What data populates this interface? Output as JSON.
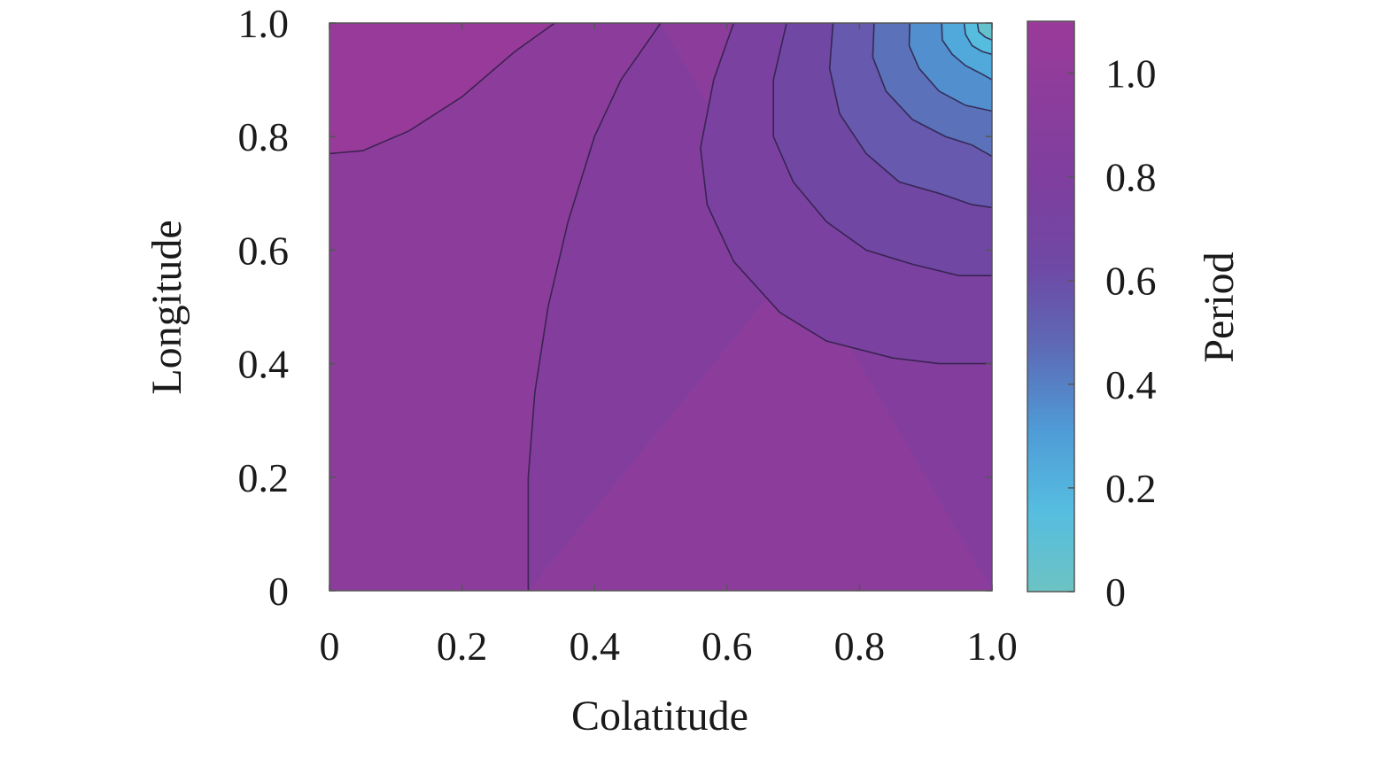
{
  "chart_data": {
    "type": "contour",
    "xlabel": "Colatitude",
    "ylabel": "Longitude",
    "colorbar_label": "Period",
    "xlim": [
      0,
      1.0
    ],
    "ylim": [
      0,
      1.0
    ],
    "x_ticks": [
      0,
      0.2,
      0.4,
      0.6,
      0.8,
      1.0
    ],
    "x_tick_labels": [
      "0",
      "0.2",
      "0.4",
      "0.6",
      "0.8",
      "1.0"
    ],
    "y_ticks": [
      0,
      0.2,
      0.4,
      0.6,
      0.8,
      1.0
    ],
    "y_tick_labels": [
      "0",
      "0.2",
      "0.4",
      "0.6",
      "0.8",
      "1.0"
    ],
    "colorbar_range": [
      0,
      1.1
    ],
    "colorbar_ticks": [
      0,
      0.2,
      0.4,
      0.6,
      0.8,
      1.0
    ],
    "colorbar_tick_labels": [
      "0",
      "0.2",
      "0.4",
      "0.6",
      "0.8",
      "1.0"
    ],
    "colormap": [
      "#6cc3c3",
      "#55bde0",
      "#4f9ad6",
      "#5d6ab6",
      "#6f48a5",
      "#7e3f9e",
      "#8b3d9c",
      "#9a3a9a"
    ],
    "contours": [
      {
        "level": 1.05,
        "points": [
          [
            0.0,
            0.77
          ],
          [
            0.05,
            0.775
          ],
          [
            0.12,
            0.81
          ],
          [
            0.2,
            0.87
          ],
          [
            0.28,
            0.95
          ],
          [
            0.34,
            1.0
          ]
        ]
      },
      {
        "level": 0.95,
        "points": [
          [
            0.3,
            0.0
          ],
          [
            0.3,
            0.2
          ],
          [
            0.31,
            0.35
          ],
          [
            0.33,
            0.5
          ],
          [
            0.36,
            0.65
          ],
          [
            0.4,
            0.8
          ],
          [
            0.44,
            0.9
          ],
          [
            0.5,
            1.0
          ]
        ]
      },
      {
        "level": 0.85,
        "points": [
          [
            0.61,
            1.0
          ],
          [
            0.58,
            0.9
          ],
          [
            0.56,
            0.78
          ],
          [
            0.57,
            0.68
          ],
          [
            0.61,
            0.58
          ],
          [
            0.68,
            0.49
          ],
          [
            0.75,
            0.44
          ],
          [
            0.85,
            0.41
          ],
          [
            0.92,
            0.4
          ],
          [
            1.0,
            0.4
          ]
        ]
      },
      {
        "level": 0.75,
        "points": [
          [
            0.69,
            1.0
          ],
          [
            0.67,
            0.9
          ],
          [
            0.67,
            0.8
          ],
          [
            0.7,
            0.72
          ],
          [
            0.75,
            0.65
          ],
          [
            0.81,
            0.6
          ],
          [
            0.88,
            0.575
          ],
          [
            0.95,
            0.555
          ],
          [
            1.0,
            0.555
          ]
        ]
      },
      {
        "level": 0.65,
        "points": [
          [
            0.76,
            1.0
          ],
          [
            0.755,
            0.92
          ],
          [
            0.77,
            0.84
          ],
          [
            0.81,
            0.77
          ],
          [
            0.86,
            0.72
          ],
          [
            0.92,
            0.7
          ],
          [
            0.97,
            0.68
          ],
          [
            1.0,
            0.675
          ]
        ]
      },
      {
        "level": 0.55,
        "points": [
          [
            0.822,
            1.0
          ],
          [
            0.82,
            0.94
          ],
          [
            0.84,
            0.88
          ],
          [
            0.88,
            0.83
          ],
          [
            0.93,
            0.8
          ],
          [
            0.97,
            0.785
          ],
          [
            1.0,
            0.765
          ]
        ]
      },
      {
        "level": 0.45,
        "points": [
          [
            0.876,
            1.0
          ],
          [
            0.875,
            0.96
          ],
          [
            0.89,
            0.92
          ],
          [
            0.92,
            0.88
          ],
          [
            0.96,
            0.855
          ],
          [
            1.0,
            0.845
          ]
        ]
      },
      {
        "level": 0.35,
        "points": [
          [
            0.924,
            1.0
          ],
          [
            0.925,
            0.97
          ],
          [
            0.94,
            0.945
          ],
          [
            0.96,
            0.925
          ],
          [
            0.985,
            0.91
          ],
          [
            1.0,
            0.9
          ]
        ]
      },
      {
        "level": 0.25,
        "points": [
          [
            0.958,
            1.0
          ],
          [
            0.96,
            0.98
          ],
          [
            0.97,
            0.96
          ],
          [
            0.985,
            0.95
          ],
          [
            1.0,
            0.945
          ]
        ]
      },
      {
        "level": 0.15,
        "points": [
          [
            0.978,
            1.0
          ],
          [
            0.98,
            0.985
          ],
          [
            0.99,
            0.975
          ],
          [
            1.0,
            0.97
          ]
        ]
      }
    ]
  }
}
